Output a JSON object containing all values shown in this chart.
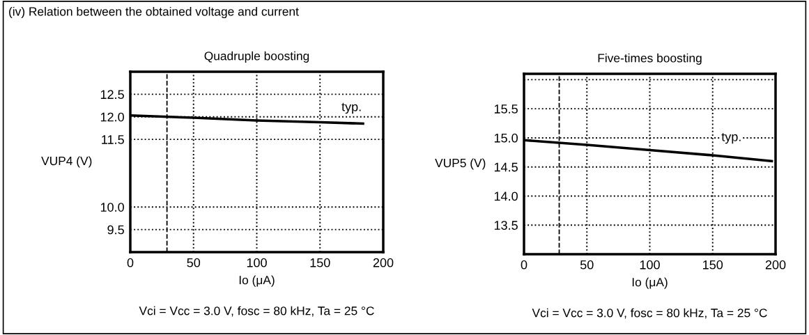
{
  "chart_data": [
    {
      "type": "line",
      "title": "Quadruple boosting",
      "xlabel": "Io (μA)",
      "ylabel": "VUP4 (V)",
      "x": [
        0,
        50,
        100,
        150,
        184
      ],
      "series": [
        {
          "color": "#000000",
          "values": [
            12.03,
            11.98,
            11.92,
            11.88,
            11.85
          ]
        }
      ],
      "xlim": [
        0,
        200
      ],
      "xticks": [
        0,
        50,
        100,
        150,
        200
      ],
      "ylim": [
        9.0,
        13.0
      ],
      "yticks": [
        {
          "value": 9.5,
          "label": "9.5"
        },
        {
          "value": 10,
          "label": "10.0"
        },
        {
          "value": 11.5,
          "label": "11.5"
        },
        {
          "value": 12,
          "label": "12.0"
        },
        {
          "value": 12.5,
          "label": "12.5"
        }
      ],
      "grid": true,
      "line_style": "solid",
      "marker": "none",
      "ref_lines": [
        {
          "axis": "x",
          "value": 29,
          "line_style": "dashed",
          "color": "#000000"
        }
      ],
      "annotations": [
        "Vci = Vcc = 3.0 V, fosc = 80 kHz, Ta = 25 °C",
        "(iv) Relation between the obtained voltage and current",
        {
          "text": "typ.",
          "x": 175,
          "y": 12.2
        }
      ]
    },
    {
      "type": "line",
      "title": "Five-times boosting",
      "xlabel": "Io (μA)",
      "ylabel": "VUP5 (V)",
      "x": [
        0,
        50,
        100,
        150,
        197
      ],
      "series": [
        {
          "color": "#000000",
          "values": [
            14.96,
            14.88,
            14.79,
            14.7,
            14.6
          ]
        }
      ],
      "xlim": [
        0,
        200
      ],
      "xticks": [
        0,
        50,
        100,
        150,
        200
      ],
      "ylim": [
        13.0,
        16.1
      ],
      "yticks": [
        {
          "value": 13.5,
          "label": "13.5"
        },
        {
          "value": 14,
          "label": "14.0"
        },
        {
          "value": 14.5,
          "label": "14.5"
        },
        {
          "value": 15,
          "label": "15.0"
        },
        {
          "value": 15.5,
          "label": "15.5"
        },
        {
          "value": 16,
          "label": null
        }
      ],
      "grid": true,
      "line_style": "solid",
      "marker": "none",
      "ref_lines": [
        {
          "axis": "x",
          "value": 28,
          "line_style": "dashed",
          "color": "#000000"
        }
      ],
      "annotations": [
        "Vci = Vcc = 3.0 V, fosc = 80 kHz, Ta = 25 °C",
        {
          "text": "typ.",
          "x": 165,
          "y": 15.0
        }
      ]
    }
  ]
}
